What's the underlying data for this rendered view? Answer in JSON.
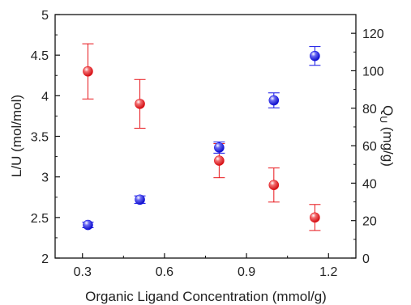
{
  "chart_data": {
    "type": "scatter",
    "title": "",
    "xlabel": "Organic Ligand Concentration (mmol/g)",
    "ylabel_left": "L/U (mol/mol)",
    "ylabel_right_main": "Q",
    "ylabel_right_sub": "U",
    "ylabel_right_units": " (mg/g)",
    "xlim": [
      0.2,
      1.3
    ],
    "ylim_left": [
      2,
      5
    ],
    "ylim_right": [
      0,
      130
    ],
    "x_ticks": [
      "0.3",
      "0.6",
      "0.9",
      "1.2"
    ],
    "x_tick_values": [
      0.3,
      0.6,
      0.9,
      1.2
    ],
    "y_left_ticks": [
      "2",
      "2.5",
      "3",
      "3.5",
      "4",
      "4.5",
      "5"
    ],
    "y_left_tick_values": [
      2,
      2.5,
      3,
      3.5,
      4,
      4.5,
      5
    ],
    "y_right_ticks": [
      "0",
      "20",
      "40",
      "60",
      "80",
      "100",
      "120"
    ],
    "y_right_tick_values": [
      0,
      20,
      40,
      60,
      80,
      100,
      120
    ],
    "grid": false,
    "legend": "none",
    "series": [
      {
        "axis": "left",
        "color": "#e8161b",
        "points": [
          {
            "x": 0.32,
            "y": 4.3,
            "err": 0.34
          },
          {
            "x": 0.51,
            "y": 3.9,
            "err": 0.3
          },
          {
            "x": 0.8,
            "y": 3.2,
            "err": 0.21
          },
          {
            "x": 1.0,
            "y": 2.9,
            "err": 0.21
          },
          {
            "x": 1.15,
            "y": 2.5,
            "err": 0.16
          }
        ]
      },
      {
        "axis": "right",
        "color": "#1515e6",
        "points": [
          {
            "x": 0.32,
            "y": 17.7,
            "err": 1.5
          },
          {
            "x": 0.51,
            "y": 31.2,
            "err": 2.0
          },
          {
            "x": 0.8,
            "y": 59.0,
            "err": 3.0
          },
          {
            "x": 1.0,
            "y": 84.2,
            "err": 4.0
          },
          {
            "x": 1.15,
            "y": 107.9,
            "err": 5.0
          }
        ]
      }
    ]
  }
}
